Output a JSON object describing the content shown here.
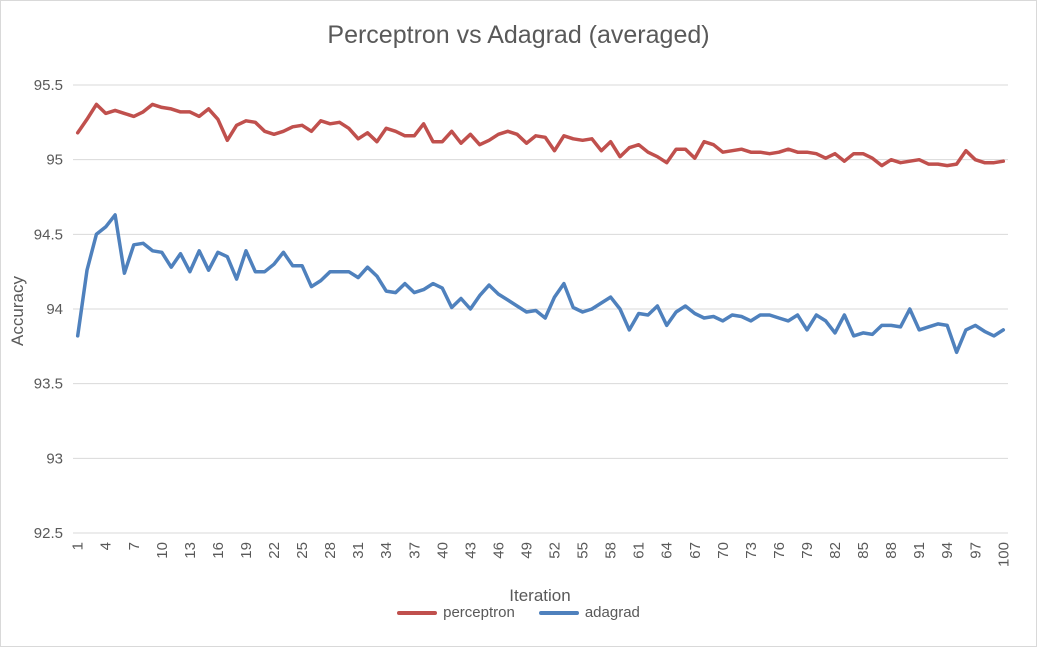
{
  "chart_data": {
    "type": "line",
    "title": "Perceptron vs Adagrad (averaged)",
    "xlabel": "Iteration",
    "ylabel": "Accuracy",
    "ylim": [
      92.5,
      95.5
    ],
    "yticks": [
      "92.5",
      "93",
      "93.5",
      "94",
      "94.5",
      "95",
      "95.5"
    ],
    "xtick_labels": [
      "1",
      "4",
      "7",
      "10",
      "13",
      "16",
      "19",
      "22",
      "25",
      "28",
      "31",
      "34",
      "37",
      "40",
      "43",
      "46",
      "49",
      "52",
      "55",
      "58",
      "61",
      "64",
      "67",
      "70",
      "73",
      "76",
      "79",
      "82",
      "85",
      "88",
      "91",
      "94",
      "97",
      "100"
    ],
    "grid": true,
    "legend_position": "bottom",
    "x": [
      1,
      2,
      3,
      4,
      5,
      6,
      7,
      8,
      9,
      10,
      11,
      12,
      13,
      14,
      15,
      16,
      17,
      18,
      19,
      20,
      21,
      22,
      23,
      24,
      25,
      26,
      27,
      28,
      29,
      30,
      31,
      32,
      33,
      34,
      35,
      36,
      37,
      38,
      39,
      40,
      41,
      42,
      43,
      44,
      45,
      46,
      47,
      48,
      49,
      50,
      51,
      52,
      53,
      54,
      55,
      56,
      57,
      58,
      59,
      60,
      61,
      62,
      63,
      64,
      65,
      66,
      67,
      68,
      69,
      70,
      71,
      72,
      73,
      74,
      75,
      76,
      77,
      78,
      79,
      80,
      81,
      82,
      83,
      84,
      85,
      86,
      87,
      88,
      89,
      90,
      91,
      92,
      93,
      94,
      95,
      96,
      97,
      98,
      99,
      100
    ],
    "series": [
      {
        "name": "perceptron",
        "color": "#C0504D",
        "values": [
          95.18,
          95.27,
          95.37,
          95.31,
          95.33,
          95.31,
          95.29,
          95.32,
          95.37,
          95.35,
          95.34,
          95.32,
          95.32,
          95.29,
          95.34,
          95.27,
          95.13,
          95.23,
          95.26,
          95.25,
          95.19,
          95.17,
          95.19,
          95.22,
          95.23,
          95.19,
          95.26,
          95.24,
          95.25,
          95.21,
          95.14,
          95.18,
          95.12,
          95.21,
          95.19,
          95.16,
          95.16,
          95.24,
          95.12,
          95.12,
          95.19,
          95.11,
          95.17,
          95.1,
          95.13,
          95.17,
          95.19,
          95.17,
          95.11,
          95.16,
          95.15,
          95.06,
          95.16,
          95.14,
          95.13,
          95.14,
          95.06,
          95.12,
          95.02,
          95.08,
          95.1,
          95.05,
          95.02,
          94.98,
          95.07,
          95.07,
          95.01,
          95.12,
          95.1,
          95.05,
          95.06,
          95.07,
          95.05,
          95.05,
          95.04,
          95.05,
          95.07,
          95.05,
          95.05,
          95.04,
          95.01,
          95.04,
          94.99,
          95.04,
          95.04,
          95.01,
          94.96,
          95.0,
          94.98,
          94.99,
          95.0,
          94.97,
          94.97,
          94.96,
          94.97,
          95.06,
          95.0,
          94.98,
          94.98,
          94.99
        ]
      },
      {
        "name": "adagrad",
        "color": "#4F81BD",
        "values": [
          93.82,
          94.26,
          94.5,
          94.55,
          94.63,
          94.24,
          94.43,
          94.44,
          94.39,
          94.38,
          94.28,
          94.37,
          94.25,
          94.39,
          94.26,
          94.38,
          94.35,
          94.2,
          94.39,
          94.25,
          94.25,
          94.3,
          94.38,
          94.29,
          94.29,
          94.15,
          94.19,
          94.25,
          94.25,
          94.25,
          94.21,
          94.28,
          94.22,
          94.12,
          94.11,
          94.17,
          94.11,
          94.13,
          94.17,
          94.14,
          94.01,
          94.07,
          94.0,
          94.09,
          94.16,
          94.1,
          94.06,
          94.02,
          93.98,
          93.99,
          93.94,
          94.08,
          94.17,
          94.01,
          93.98,
          94.0,
          94.04,
          94.08,
          94.0,
          93.86,
          93.97,
          93.96,
          94.02,
          93.89,
          93.98,
          94.02,
          93.97,
          93.94,
          93.95,
          93.92,
          93.96,
          93.95,
          93.92,
          93.96,
          93.96,
          93.94,
          93.92,
          93.96,
          93.86,
          93.96,
          93.92,
          93.84,
          93.96,
          93.82,
          93.84,
          93.83,
          93.89,
          93.89,
          93.88,
          94.0,
          93.86,
          93.88,
          93.9,
          93.89,
          93.71,
          93.86,
          93.89,
          93.85,
          93.82,
          93.86
        ]
      }
    ]
  }
}
